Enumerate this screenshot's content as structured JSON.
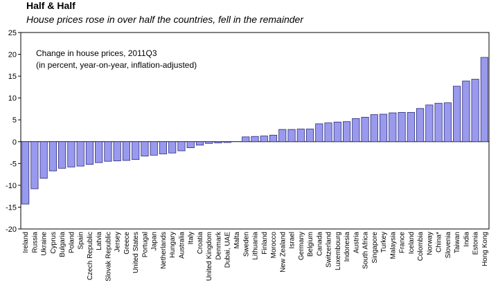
{
  "chart_data": {
    "type": "bar",
    "title": "Half & Half",
    "subtitle": "House prices rose in over half the countries, fell in the remainder",
    "annotation": [
      "Change in house prices, 2011Q3",
      "(in percent, year-on-year, inflation-adjusted)"
    ],
    "ylim": [
      -20,
      25
    ],
    "yticks": [
      -20,
      -15,
      -10,
      -5,
      0,
      5,
      10,
      15,
      20,
      25
    ],
    "grid": false,
    "bar_color": "#9999ee",
    "bar_edge": "#2a2a7a",
    "categories": [
      "Ireland",
      "Russia",
      "Ukraine",
      "Cyprus",
      "Bulgaria",
      "Poland",
      "Spain",
      "Czech Republic",
      "Latvia",
      "Slovak Republic",
      "Jersey",
      "Greece",
      "United States",
      "Portugal",
      "Japan",
      "Netherlands",
      "Hungary",
      "Australia",
      "Italy",
      "Croatia",
      "United Kingdom",
      "Denmark",
      "Dubai, UAE",
      "Malta",
      "Sweden",
      "Lithuania",
      "Finland",
      "Morocco",
      "New Zealand",
      "Israel",
      "Germany",
      "Belgium",
      "Canada",
      "Switzerland",
      "Luxembourg",
      "Indonesia",
      "Austria",
      "South Africa",
      "Singapore",
      "Turkey",
      "Malaysia",
      "France",
      "Iceland",
      "Colombia",
      "Norway",
      "China*",
      "Slovenia",
      "Taiwan",
      "India",
      "Estonia",
      "Hong Kong"
    ],
    "values": [
      -14.3,
      -10.8,
      -8.4,
      -6.7,
      -6.1,
      -5.8,
      -5.6,
      -5.2,
      -4.8,
      -4.5,
      -4.4,
      -4.3,
      -4.1,
      -3.3,
      -3.1,
      -2.8,
      -2.6,
      -2.1,
      -1.4,
      -0.8,
      -0.4,
      -0.3,
      -0.2,
      0,
      1.1,
      1.2,
      1.3,
      1.5,
      2.8,
      2.8,
      2.9,
      2.9,
      4.1,
      4.3,
      4.5,
      4.6,
      5.3,
      5.6,
      6.2,
      6.3,
      6.6,
      6.7,
      6.7,
      7.6,
      8.4,
      8.8,
      8.9,
      12.7,
      13.9,
      14.3,
      19.3
    ]
  }
}
